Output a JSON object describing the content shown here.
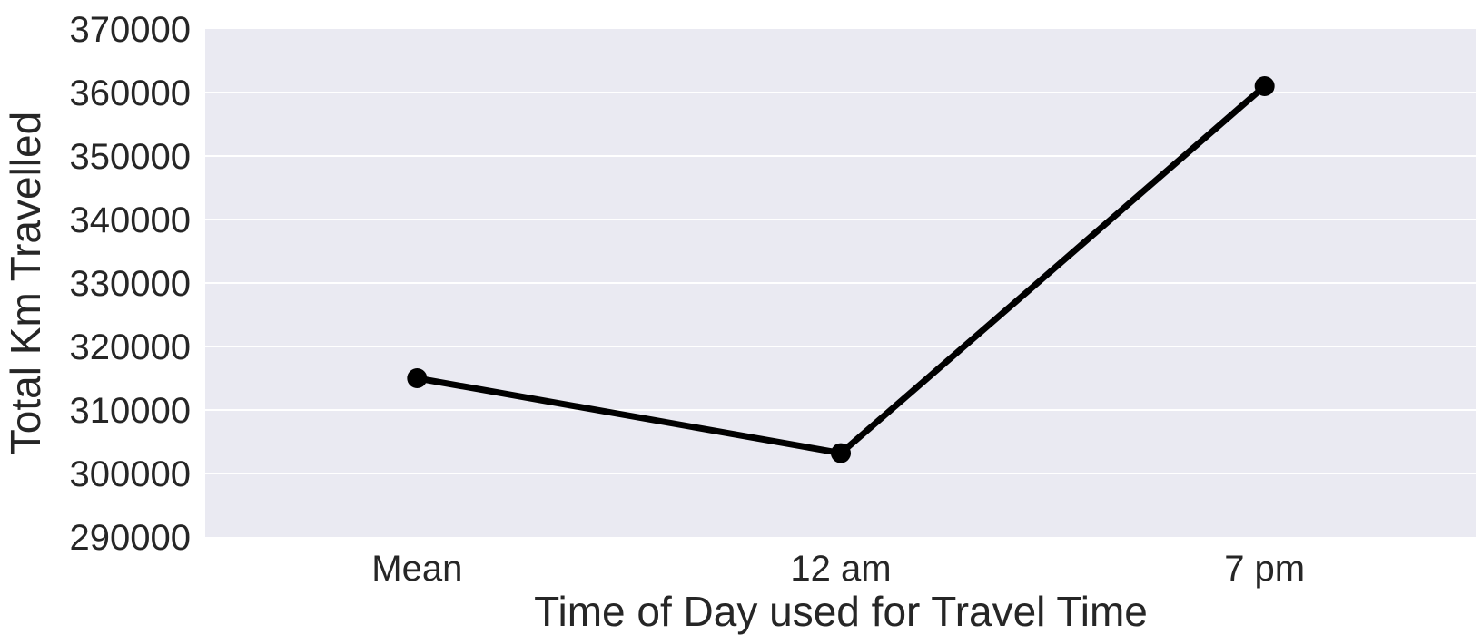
{
  "chart_data": {
    "type": "line",
    "title": "",
    "xlabel": "Time of Day used for Travel Time",
    "ylabel": "Total Km Travelled",
    "categories": [
      "Mean",
      "12 am",
      "7 pm"
    ],
    "series": [
      {
        "values": [
          315000,
          303200,
          361000
        ]
      }
    ],
    "ylim": [
      290000,
      370000
    ],
    "yticks": [
      "290000",
      "300000",
      "310000",
      "320000",
      "330000",
      "340000",
      "350000",
      "360000",
      "370000"
    ],
    "grid": true,
    "legend": "none",
    "colors": {
      "plot_background": "#eaeaf2",
      "grid": "#ffffff",
      "line": "#000000",
      "text": "#262626"
    }
  }
}
